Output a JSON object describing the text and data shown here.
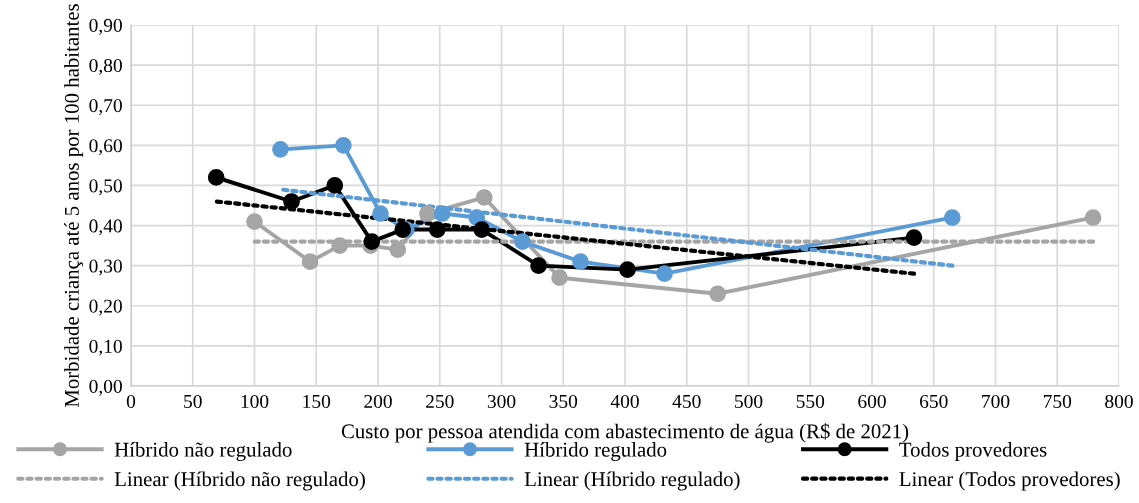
{
  "chart_data": {
    "type": "line",
    "xlabel": "Custo por pessoa atendida com abastecimento de água (R$ de 2021)",
    "ylabel": "Morbidade criança até 5 anos por 100 habitantes",
    "xlim": [
      0,
      800
    ],
    "xticks": [
      0,
      50,
      100,
      150,
      200,
      250,
      300,
      350,
      400,
      450,
      500,
      550,
      600,
      650,
      700,
      750,
      800
    ],
    "ylim": [
      0,
      0.9
    ],
    "yticks": [
      {
        "value": 0,
        "label": "0,00"
      },
      {
        "value": 0.1,
        "label": "0,10"
      },
      {
        "value": 0.2,
        "label": "0,20"
      },
      {
        "value": 0.3,
        "label": "0,30"
      },
      {
        "value": 0.4,
        "label": "0,40"
      },
      {
        "value": 0.5,
        "label": "0,50"
      },
      {
        "value": 0.6,
        "label": "0,60"
      },
      {
        "value": 0.7,
        "label": "0,70"
      },
      {
        "value": 0.8,
        "label": "0,80"
      },
      {
        "value": 0.9,
        "label": "0,90"
      }
    ],
    "grid": true,
    "legend": "bottom",
    "series": [
      {
        "name": "Híbrido não regulado",
        "color": "#a5a5a5",
        "marker": "circle",
        "line_style": "solid",
        "x": [
          100,
          145,
          169,
          194,
          216,
          240,
          286,
          347,
          475,
          779
        ],
        "values": [
          0.41,
          0.31,
          0.35,
          0.35,
          0.34,
          0.43,
          0.47,
          0.27,
          0.23,
          0.42
        ]
      },
      {
        "name": "Híbrido regulado",
        "color": "#5b9bd5",
        "marker": "circle",
        "line_style": "solid",
        "x": [
          121,
          172,
          202,
          223,
          252,
          280,
          317,
          364,
          432,
          665
        ],
        "values": [
          0.59,
          0.6,
          0.43,
          0.39,
          0.43,
          0.42,
          0.36,
          0.31,
          0.28,
          0.42
        ]
      },
      {
        "name": "Todos provedores",
        "color": "#000000",
        "marker": "circle",
        "line_style": "solid",
        "x": [
          69,
          130,
          165,
          195,
          220,
          248,
          284,
          330,
          402,
          634
        ],
        "values": [
          0.52,
          0.46,
          0.5,
          0.36,
          0.39,
          0.39,
          0.39,
          0.3,
          0.29,
          0.37
        ]
      },
      {
        "name": "Linear (Híbrido não regulado)",
        "color": "#a5a5a5",
        "marker": "none",
        "line_style": "dotted",
        "x": [
          100,
          779
        ],
        "values": [
          0.36,
          0.36
        ]
      },
      {
        "name": "Linear (Híbrido regulado)",
        "color": "#5b9bd5",
        "marker": "none",
        "line_style": "dotted",
        "x": [
          121,
          665
        ],
        "values": [
          0.49,
          0.3
        ]
      },
      {
        "name": "Linear (Todos provedores)",
        "color": "#000000",
        "marker": "none",
        "line_style": "dotted",
        "x": [
          69,
          634
        ],
        "values": [
          0.46,
          0.28
        ]
      }
    ]
  }
}
